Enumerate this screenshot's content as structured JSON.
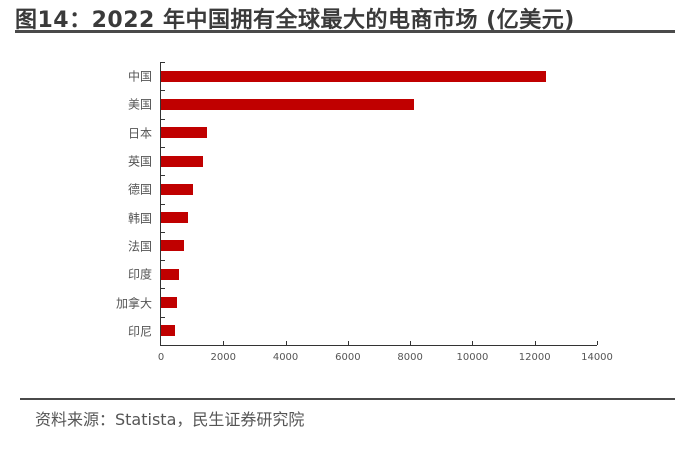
{
  "title": "图14：2022 年中国拥有全球最大的电商市场 (亿美元)",
  "source": "资料来源：Statista，民生证券研究院",
  "colors": {
    "bar": "#c00000",
    "text": "#3a3a3a",
    "axis": "#333333"
  },
  "chart_data": {
    "type": "bar",
    "orientation": "horizontal",
    "title": "2022 年中国拥有全球最大的电商市场 (亿美元)",
    "xlabel": "",
    "ylabel": "",
    "categories": [
      "中国",
      "美国",
      "日本",
      "英国",
      "德国",
      "韩国",
      "法国",
      "印度",
      "加拿大",
      "印尼"
    ],
    "values": [
      12360,
      8120,
      1480,
      1350,
      1030,
      870,
      740,
      580,
      510,
      450
    ],
    "unit": "亿美元",
    "xlim": [
      0,
      14000
    ],
    "xticks": [
      0,
      2000,
      4000,
      6000,
      8000,
      10000,
      12000,
      14000
    ],
    "xtick_labels": [
      "0",
      "2000",
      "4000",
      "6000",
      "8000",
      "10000",
      "12000",
      "14000"
    ],
    "grid": false,
    "legend": null
  }
}
